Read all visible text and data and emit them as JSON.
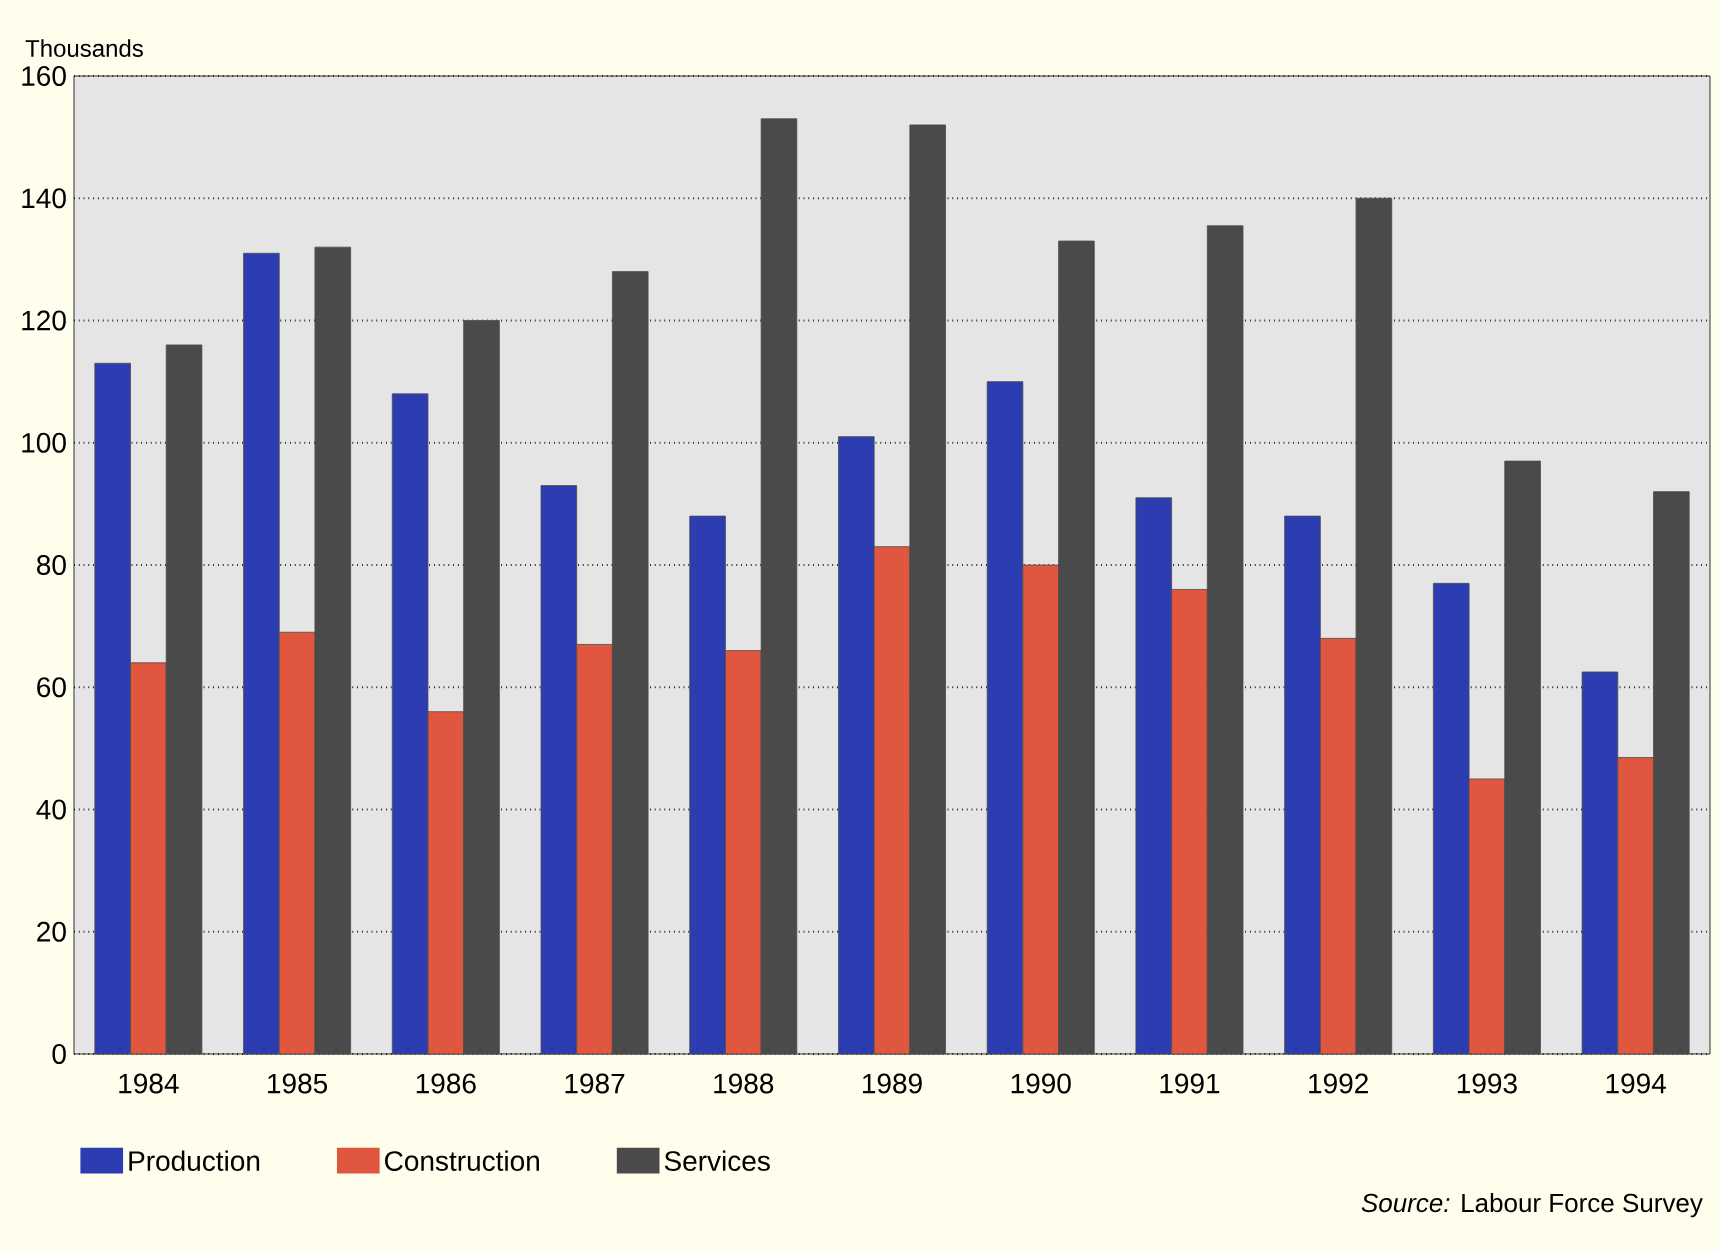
{
  "chart_data": {
    "type": "bar",
    "ylabel": "Thousands",
    "categories": [
      "1984",
      "1985",
      "1986",
      "1987",
      "1988",
      "1989",
      "1990",
      "1991",
      "1992",
      "1993",
      "1994"
    ],
    "series": [
      {
        "name": "Production",
        "color": "#2b3db0",
        "values": [
          113,
          131,
          108,
          93,
          88,
          101,
          110,
          91,
          88,
          77,
          62.5
        ]
      },
      {
        "name": "Construction",
        "color": "#e0563e",
        "values": [
          64,
          69,
          56,
          67,
          66,
          83,
          80,
          76,
          68,
          45,
          48.5
        ]
      },
      {
        "name": "Services",
        "color": "#4a4a4a",
        "values": [
          116,
          132,
          120,
          128,
          153,
          152,
          133,
          135.5,
          140,
          97,
          92
        ]
      }
    ],
    "ylim": [
      0,
      160
    ],
    "yticks": [
      0,
      20,
      40,
      60,
      80,
      100,
      120,
      140,
      160
    ],
    "grid": "y",
    "legend": "bottom left",
    "annotations": [
      "*Source:* Labour Force Survey"
    ]
  }
}
